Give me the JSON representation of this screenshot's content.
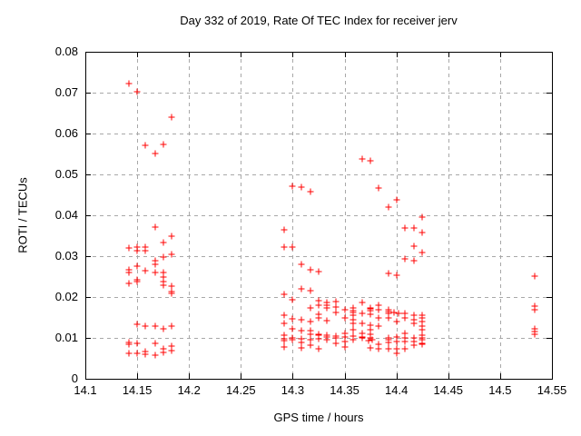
{
  "chart_data": {
    "type": "scatter",
    "title": "Day 332 of 2019, Rate Of TEC Index for receiver jerv",
    "xlabel": "GPS time / hours",
    "ylabel": "ROTI / TECUs",
    "xlim": [
      14.1,
      14.55
    ],
    "ylim": [
      0,
      0.08
    ],
    "xticks": [
      14.1,
      14.15,
      14.2,
      14.25,
      14.3,
      14.35,
      14.4,
      14.45,
      14.5,
      14.55
    ],
    "xtick_labels": [
      "14.1",
      "14.15",
      "14.2",
      "14.25",
      "14.3",
      "14.35",
      "14.4",
      "14.45",
      "14.5",
      "14.55"
    ],
    "yticks": [
      0,
      0.01,
      0.02,
      0.03,
      0.04,
      0.05,
      0.06,
      0.07,
      0.08
    ],
    "ytick_labels": [
      "0",
      "0.01",
      "0.02",
      "0.03",
      "0.04",
      "0.05",
      "0.06",
      "0.07",
      "0.08"
    ],
    "grid": true,
    "legend": "none",
    "marker": "plus",
    "colors": {
      "marker": "#ff0000",
      "grid": "#a8a8a8",
      "axis": "#000000",
      "background": "#ffffff"
    },
    "series": [
      {
        "name": "ROTI",
        "points": [
          [
            14.142,
            0.0723
          ],
          [
            14.15,
            0.0703
          ],
          [
            14.183,
            0.064
          ],
          [
            14.158,
            0.0571
          ],
          [
            14.175,
            0.0574
          ],
          [
            14.167,
            0.0552
          ],
          [
            14.167,
            0.0371
          ],
          [
            14.183,
            0.035
          ],
          [
            14.175,
            0.0334
          ],
          [
            14.142,
            0.0321
          ],
          [
            14.15,
            0.0323
          ],
          [
            14.15,
            0.0314
          ],
          [
            14.158,
            0.0323
          ],
          [
            14.158,
            0.0314
          ],
          [
            14.183,
            0.0305
          ],
          [
            14.175,
            0.0297
          ],
          [
            14.167,
            0.0288
          ],
          [
            14.167,
            0.0281
          ],
          [
            14.142,
            0.0266
          ],
          [
            14.142,
            0.026
          ],
          [
            14.15,
            0.0276
          ],
          [
            14.158,
            0.0264
          ],
          [
            14.167,
            0.026
          ],
          [
            14.175,
            0.026
          ],
          [
            14.175,
            0.025
          ],
          [
            14.175,
            0.0238
          ],
          [
            14.175,
            0.0228
          ],
          [
            14.142,
            0.0234
          ],
          [
            14.15,
            0.0242
          ],
          [
            14.15,
            0.0238
          ],
          [
            14.183,
            0.0227
          ],
          [
            14.183,
            0.0214
          ],
          [
            14.183,
            0.0208
          ],
          [
            14.15,
            0.0134
          ],
          [
            14.158,
            0.013
          ],
          [
            14.167,
            0.0128
          ],
          [
            14.175,
            0.0122
          ],
          [
            14.183,
            0.0128
          ],
          [
            14.142,
            0.0088
          ],
          [
            14.142,
            0.0084
          ],
          [
            14.15,
            0.0087
          ],
          [
            14.167,
            0.0087
          ],
          [
            14.183,
            0.008
          ],
          [
            14.142,
            0.0063
          ],
          [
            14.15,
            0.0063
          ],
          [
            14.158,
            0.0067
          ],
          [
            14.158,
            0.0061
          ],
          [
            14.167,
            0.0058
          ],
          [
            14.175,
            0.0073
          ],
          [
            14.175,
            0.0065
          ],
          [
            14.183,
            0.007
          ],
          [
            14.292,
            0.0364
          ],
          [
            14.292,
            0.0323
          ],
          [
            14.3,
            0.0323
          ],
          [
            14.3,
            0.0471
          ],
          [
            14.308,
            0.0468
          ],
          [
            14.317,
            0.0458
          ],
          [
            14.367,
            0.0537
          ],
          [
            14.375,
            0.0533
          ],
          [
            14.383,
            0.0467
          ],
          [
            14.4,
            0.0438
          ],
          [
            14.392,
            0.0419
          ],
          [
            14.425,
            0.0395
          ],
          [
            14.408,
            0.037
          ],
          [
            14.417,
            0.037
          ],
          [
            14.425,
            0.0358
          ],
          [
            14.417,
            0.0324
          ],
          [
            14.425,
            0.0309
          ],
          [
            14.408,
            0.0293
          ],
          [
            14.417,
            0.029
          ],
          [
            14.308,
            0.0279
          ],
          [
            14.317,
            0.0267
          ],
          [
            14.325,
            0.0263
          ],
          [
            14.392,
            0.0258
          ],
          [
            14.4,
            0.0254
          ],
          [
            14.308,
            0.0221
          ],
          [
            14.317,
            0.0215
          ],
          [
            14.292,
            0.0207
          ],
          [
            14.3,
            0.0193
          ],
          [
            14.325,
            0.0191
          ],
          [
            14.325,
            0.018
          ],
          [
            14.333,
            0.0187
          ],
          [
            14.333,
            0.018
          ],
          [
            14.333,
            0.0173
          ],
          [
            14.342,
            0.019
          ],
          [
            14.342,
            0.0175
          ],
          [
            14.317,
            0.0173
          ],
          [
            14.367,
            0.0186
          ],
          [
            14.358,
            0.0173
          ],
          [
            14.375,
            0.0173
          ],
          [
            14.383,
            0.018
          ],
          [
            14.383,
            0.017
          ],
          [
            14.392,
            0.017
          ],
          [
            14.292,
            0.0156
          ],
          [
            14.292,
            0.0136
          ],
          [
            14.292,
            0.0106
          ],
          [
            14.292,
            0.0097
          ],
          [
            14.292,
            0.0093
          ],
          [
            14.292,
            0.0078
          ],
          [
            14.3,
            0.0147
          ],
          [
            14.3,
            0.0122
          ],
          [
            14.3,
            0.01
          ],
          [
            14.3,
            0.0096
          ],
          [
            14.308,
            0.0145
          ],
          [
            14.308,
            0.0117
          ],
          [
            14.308,
            0.0098
          ],
          [
            14.308,
            0.0089
          ],
          [
            14.308,
            0.0076
          ],
          [
            14.317,
            0.0139
          ],
          [
            14.317,
            0.0117
          ],
          [
            14.317,
            0.0108
          ],
          [
            14.317,
            0.0095
          ],
          [
            14.317,
            0.0082
          ],
          [
            14.325,
            0.0158
          ],
          [
            14.325,
            0.0148
          ],
          [
            14.325,
            0.011
          ],
          [
            14.325,
            0.0106
          ],
          [
            14.325,
            0.0098
          ],
          [
            14.325,
            0.0073
          ],
          [
            14.333,
            0.0143
          ],
          [
            14.333,
            0.0106
          ],
          [
            14.333,
            0.0102
          ],
          [
            14.333,
            0.0095
          ],
          [
            14.342,
            0.0162
          ],
          [
            14.342,
            0.0104
          ],
          [
            14.342,
            0.01
          ],
          [
            14.342,
            0.0087
          ],
          [
            14.35,
            0.0169
          ],
          [
            14.35,
            0.015
          ],
          [
            14.35,
            0.0111
          ],
          [
            14.35,
            0.0102
          ],
          [
            14.35,
            0.0091
          ],
          [
            14.35,
            0.0078
          ],
          [
            14.358,
            0.0167
          ],
          [
            14.358,
            0.0163
          ],
          [
            14.358,
            0.0156
          ],
          [
            14.358,
            0.0145
          ],
          [
            14.358,
            0.0136
          ],
          [
            14.358,
            0.0121
          ],
          [
            14.358,
            0.0104
          ],
          [
            14.358,
            0.0096
          ],
          [
            14.367,
            0.016
          ],
          [
            14.367,
            0.0136
          ],
          [
            14.367,
            0.0111
          ],
          [
            14.367,
            0.0103
          ],
          [
            14.367,
            0.0099
          ],
          [
            14.375,
            0.0171
          ],
          [
            14.375,
            0.0167
          ],
          [
            14.375,
            0.0158
          ],
          [
            14.375,
            0.0132
          ],
          [
            14.375,
            0.0121
          ],
          [
            14.375,
            0.011
          ],
          [
            14.375,
            0.0101
          ],
          [
            14.373,
            0.0093
          ],
          [
            14.377,
            0.0095
          ],
          [
            14.375,
            0.0076
          ],
          [
            14.383,
            0.0169
          ],
          [
            14.383,
            0.015
          ],
          [
            14.383,
            0.0128
          ],
          [
            14.383,
            0.0084
          ],
          [
            14.383,
            0.0073
          ],
          [
            14.392,
            0.0164
          ],
          [
            14.392,
            0.016
          ],
          [
            14.392,
            0.015
          ],
          [
            14.392,
            0.01
          ],
          [
            14.392,
            0.0096
          ],
          [
            14.392,
            0.0089
          ],
          [
            14.392,
            0.0073
          ],
          [
            14.398,
            0.0163
          ],
          [
            14.402,
            0.0161
          ],
          [
            14.4,
            0.0141
          ],
          [
            14.4,
            0.0102
          ],
          [
            14.4,
            0.0091
          ],
          [
            14.4,
            0.0073
          ],
          [
            14.4,
            0.0062
          ],
          [
            14.408,
            0.016
          ],
          [
            14.408,
            0.015
          ],
          [
            14.408,
            0.0111
          ],
          [
            14.408,
            0.0101
          ],
          [
            14.408,
            0.0091
          ],
          [
            14.408,
            0.0074
          ],
          [
            14.417,
            0.0156
          ],
          [
            14.417,
            0.0145
          ],
          [
            14.417,
            0.0136
          ],
          [
            14.417,
            0.0101
          ],
          [
            14.417,
            0.0091
          ],
          [
            14.417,
            0.0082
          ],
          [
            14.425,
            0.0156
          ],
          [
            14.425,
            0.0148
          ],
          [
            14.425,
            0.0139
          ],
          [
            14.425,
            0.0128
          ],
          [
            14.425,
            0.0121
          ],
          [
            14.425,
            0.0107
          ],
          [
            14.425,
            0.0101
          ],
          [
            14.425,
            0.0095
          ],
          [
            14.425,
            0.0087
          ],
          [
            14.425,
            0.0084
          ],
          [
            14.533,
            0.0252
          ],
          [
            14.533,
            0.0178
          ],
          [
            14.533,
            0.0169
          ],
          [
            14.533,
            0.0122
          ],
          [
            14.533,
            0.0116
          ],
          [
            14.533,
            0.0109
          ]
        ]
      }
    ]
  }
}
